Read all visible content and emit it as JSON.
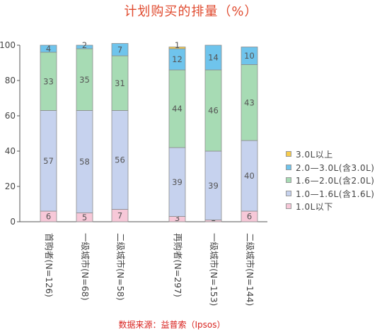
{
  "title": "计划购买的排量（%）",
  "source": "数据来源：益普索（Ipsos）",
  "colors": {
    "title": "#e04a2e",
    "source": "#d8231f",
    "bar_outline": "#8d8d8d",
    "axis": "#555555"
  },
  "chart_data": {
    "type": "bar",
    "stacked": true,
    "categories": [
      "首购者(N=126)",
      "一级城市(N=68)",
      "二级城市(N=58)",
      "再购者(N=297)",
      "一级城市(N=153)",
      "二级城市(N=144)"
    ],
    "series": [
      {
        "name": "1.0L以下",
        "color": "#f7c8d8",
        "values": [
          6,
          5,
          7,
          3,
          1,
          6
        ],
        "labels": [
          "6",
          "5",
          "7",
          "3",
          "1",
          "6"
        ]
      },
      {
        "name": "1.0—1.6L(含1.6L)",
        "color": "#c6d2ee",
        "values": [
          57,
          58,
          56,
          39,
          39,
          40
        ],
        "labels": [
          "57",
          "58",
          "56",
          "39",
          "39",
          "40"
        ]
      },
      {
        "name": "1.6—2.0L(含2.0L)",
        "color": "#a7dbb4",
        "values": [
          33,
          35,
          31,
          44,
          46,
          43
        ],
        "labels": [
          "33",
          "35",
          "31",
          "44",
          "46",
          "43"
        ]
      },
      {
        "name": "2.0—3.0L(含3.0L)",
        "color": "#6fc4ec",
        "values": [
          4,
          2,
          7,
          12,
          14,
          10
        ],
        "labels": [
          "4",
          "2",
          "7",
          "12",
          "14",
          "10"
        ]
      },
      {
        "name": "3.0L以上",
        "color": "#f7cc4c",
        "values": [
          0,
          0,
          0,
          1,
          0,
          0
        ],
        "labels": [
          "",
          "",
          "",
          "1",
          "",
          ""
        ]
      }
    ],
    "legend_order": [
      "3.0L以上",
      "2.0—3.0L(含3.0L)",
      "1.6—2.0L(含2.0L)",
      "1.0—1.6L(含1.6L)",
      "1.0L以下"
    ],
    "ylim": [
      0,
      100
    ],
    "yticks": [
      0,
      20,
      40,
      60,
      80,
      100
    ],
    "xlabel": "",
    "ylabel": "",
    "grid": false,
    "legend_position": "right"
  }
}
